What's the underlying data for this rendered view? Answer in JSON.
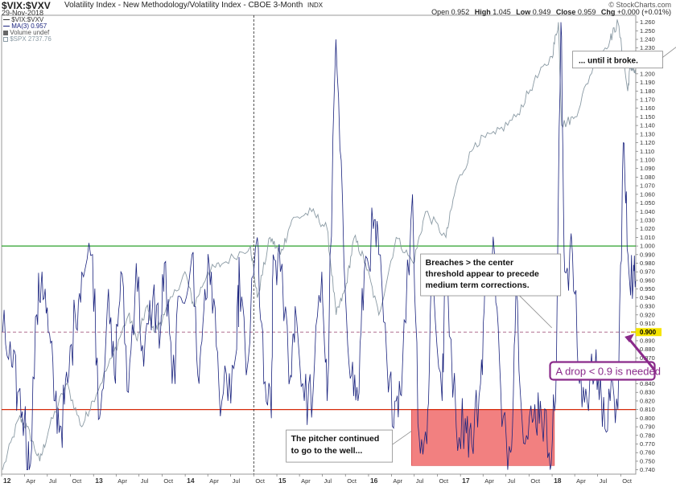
{
  "header": {
    "ticker": "$VIX:$VXV",
    "subtitle": "Volatility Index - New Methodology/Volatility Index - CBOE 3-Month",
    "exchange": "INDX",
    "date": "29-Nov-2018",
    "credit": "© StockCharts.com",
    "ohlc": {
      "open_label": "Open",
      "open": "0.952",
      "high_label": "High",
      "high": "1.045",
      "low_label": "Low",
      "low": "0.949",
      "close_label": "Close",
      "close": "0.959",
      "chg_label": "Chg",
      "chg": "+0.000 (+0.01%)"
    }
  },
  "legend": {
    "items": [
      "$VIX:$VXV",
      "MA(3) 0.957",
      "Volume undef",
      "$SPX 2737.76"
    ],
    "colors": [
      "#333333",
      "#1a237e",
      "#666666",
      "#8a9aa4"
    ]
  },
  "chart_data": {
    "type": "line",
    "y_axis": {
      "position": "right",
      "ylim": [
        0.735,
        1.268
      ],
      "ticks": [
        0.74,
        0.75,
        0.76,
        0.77,
        0.78,
        0.79,
        0.8,
        0.81,
        0.82,
        0.83,
        0.84,
        0.85,
        0.86,
        0.87,
        0.88,
        0.89,
        0.9,
        0.91,
        0.92,
        0.93,
        0.94,
        0.95,
        0.96,
        0.97,
        0.98,
        0.99,
        1.0,
        1.01,
        1.02,
        1.03,
        1.04,
        1.05,
        1.06,
        1.07,
        1.08,
        1.09,
        1.1,
        1.11,
        1.12,
        1.13,
        1.14,
        1.15,
        1.16,
        1.17,
        1.18,
        1.19,
        1.2,
        1.21,
        1.22,
        1.23,
        1.24,
        1.25,
        1.26
      ],
      "labels": [
        "0.740",
        "0.750",
        "0.760",
        "0.770",
        "0.780",
        "0.790",
        "0.800",
        "0.810",
        "0.820",
        "0.830",
        "0.840",
        "0.850",
        "0.860",
        "0.870",
        "0.880",
        "0.890",
        "0.900",
        "0.910",
        "0.920",
        "0.930",
        "0.940",
        "0.950",
        "0.960",
        "0.970",
        "0.980",
        "0.990",
        "1.000",
        "1.010",
        "1.020",
        "1.030",
        "1.040",
        "1.050",
        "1.060",
        "1.070",
        "1.080",
        "1.090",
        "1.100",
        "1.110",
        "1.120",
        "1.130",
        "1.140",
        "1.150",
        "1.160",
        "1.170",
        "1.180",
        "1.190",
        "1.200",
        "1.210",
        "1.220",
        "1.230",
        "1.240",
        "1.250",
        "1.260"
      ]
    },
    "x_axis": {
      "xlim": [
        "2012-01-01",
        "2018-11-30"
      ],
      "ticks": [
        {
          "date": "2012-01-01",
          "label": "12"
        },
        {
          "date": "2012-04-01",
          "label": "Apr"
        },
        {
          "date": "2012-07-01",
          "label": "Jul"
        },
        {
          "date": "2012-10-01",
          "label": "Oct"
        },
        {
          "date": "2013-01-01",
          "label": "13"
        },
        {
          "date": "2013-04-01",
          "label": "Apr"
        },
        {
          "date": "2013-07-01",
          "label": "Jul"
        },
        {
          "date": "2013-10-01",
          "label": "Oct"
        },
        {
          "date": "2014-01-01",
          "label": "14"
        },
        {
          "date": "2014-04-01",
          "label": "Apr"
        },
        {
          "date": "2014-07-01",
          "label": "Jul"
        },
        {
          "date": "2014-10-01",
          "label": "Oct"
        },
        {
          "date": "2015-01-01",
          "label": "15"
        },
        {
          "date": "2015-04-01",
          "label": "Apr"
        },
        {
          "date": "2015-07-01",
          "label": "Jul"
        },
        {
          "date": "2015-10-01",
          "label": "Oct"
        },
        {
          "date": "2016-01-01",
          "label": "16"
        },
        {
          "date": "2016-04-01",
          "label": "Apr"
        },
        {
          "date": "2016-07-01",
          "label": "Jul"
        },
        {
          "date": "2016-10-01",
          "label": "Oct"
        },
        {
          "date": "2017-01-01",
          "label": "17"
        },
        {
          "date": "2017-04-01",
          "label": "Apr"
        },
        {
          "date": "2017-07-01",
          "label": "Jul"
        },
        {
          "date": "2017-10-01",
          "label": "Oct"
        },
        {
          "date": "2018-01-01",
          "label": "18"
        },
        {
          "date": "2018-04-01",
          "label": "Apr"
        },
        {
          "date": "2018-07-01",
          "label": "Jul"
        },
        {
          "date": "2018-10-01",
          "label": "Oct"
        }
      ]
    },
    "vline_date": "2014-10-01",
    "hlines": [
      {
        "value": 1.0,
        "color": "#2ca02c",
        "style": "solid"
      },
      {
        "value": 0.9,
        "color": "#b07090",
        "style": "dashed"
      },
      {
        "value": 0.81,
        "color": "#d62a0a",
        "style": "solid"
      }
    ],
    "last_value_marker": {
      "value": 0.9,
      "label": "0.900",
      "color": "#f5e400"
    },
    "series": [
      {
        "color": "#1a237e",
        "points": [
          [
            "2012-01-05",
            0.9
          ],
          [
            "2012-02-10",
            0.86
          ],
          [
            "2012-03-05",
            0.83
          ],
          [
            "2012-04-01",
            0.8
          ],
          [
            "2012-04-20",
            0.74
          ],
          [
            "2012-05-20",
            0.92
          ],
          [
            "2012-06-10",
            0.97
          ],
          [
            "2012-07-05",
            0.9
          ],
          [
            "2012-08-01",
            0.82
          ],
          [
            "2012-08-25",
            0.79
          ],
          [
            "2012-09-20",
            0.84
          ],
          [
            "2012-10-20",
            0.92
          ],
          [
            "2012-11-15",
            0.97
          ],
          [
            "2012-12-28",
            0.99
          ],
          [
            "2013-01-25",
            0.8
          ],
          [
            "2013-02-25",
            0.93
          ],
          [
            "2013-03-25",
            0.85
          ],
          [
            "2013-04-20",
            0.97
          ],
          [
            "2013-05-20",
            0.83
          ],
          [
            "2013-06-20",
            0.98
          ],
          [
            "2013-07-20",
            0.86
          ],
          [
            "2013-08-25",
            0.94
          ],
          [
            "2013-09-25",
            0.9
          ],
          [
            "2013-10-10",
            0.98
          ],
          [
            "2013-11-10",
            0.84
          ],
          [
            "2013-12-15",
            0.94
          ],
          [
            "2014-01-28",
            0.99
          ],
          [
            "2014-02-25",
            0.84
          ],
          [
            "2014-03-20",
            0.95
          ],
          [
            "2014-04-15",
            0.97
          ],
          [
            "2014-05-15",
            0.84
          ],
          [
            "2014-06-20",
            0.82
          ],
          [
            "2014-07-25",
            0.88
          ],
          [
            "2014-08-05",
            0.97
          ],
          [
            "2014-09-01",
            0.85
          ],
          [
            "2014-10-15",
            1.01
          ],
          [
            "2014-11-10",
            0.84
          ],
          [
            "2014-12-10",
            0.8
          ],
          [
            "2014-12-17",
            0.99
          ],
          [
            "2015-01-15",
            0.97
          ],
          [
            "2015-02-25",
            0.85
          ],
          [
            "2015-03-15",
            0.93
          ],
          [
            "2015-04-20",
            0.82
          ],
          [
            "2015-05-25",
            0.83
          ],
          [
            "2015-06-29",
            0.97
          ],
          [
            "2015-07-20",
            0.82
          ],
          [
            "2015-08-24",
            1.24
          ],
          [
            "2015-09-25",
            0.98
          ],
          [
            "2015-10-25",
            0.85
          ],
          [
            "2015-11-20",
            0.82
          ],
          [
            "2015-12-15",
            0.97
          ],
          [
            "2016-01-20",
            1.02
          ],
          [
            "2016-02-11",
            0.99
          ],
          [
            "2016-03-20",
            0.83
          ],
          [
            "2016-04-20",
            0.82
          ],
          [
            "2016-05-15",
            0.86
          ],
          [
            "2016-06-24",
            1.06
          ],
          [
            "2016-07-20",
            0.78
          ],
          [
            "2016-08-20",
            0.77
          ],
          [
            "2016-09-09",
            0.98
          ],
          [
            "2016-10-20",
            0.82
          ],
          [
            "2016-11-04",
            0.99
          ],
          [
            "2016-12-15",
            0.79
          ],
          [
            "2017-01-20",
            0.8
          ],
          [
            "2017-02-15",
            0.77
          ],
          [
            "2017-03-22",
            0.84
          ],
          [
            "2017-04-13",
            0.97
          ],
          [
            "2017-05-17",
            0.99
          ],
          [
            "2017-06-15",
            0.79
          ],
          [
            "2017-07-20",
            0.76
          ],
          [
            "2017-08-10",
            0.95
          ],
          [
            "2017-09-15",
            0.77
          ],
          [
            "2017-10-20",
            0.8
          ],
          [
            "2017-11-15",
            0.82
          ],
          [
            "2017-12-20",
            0.76
          ],
          [
            "2018-01-15",
            0.82
          ],
          [
            "2018-02-05",
            1.26
          ],
          [
            "2018-02-20",
            0.97
          ],
          [
            "2018-03-23",
            0.99
          ],
          [
            "2018-04-20",
            0.84
          ],
          [
            "2018-05-20",
            0.82
          ],
          [
            "2018-06-25",
            0.88
          ],
          [
            "2018-07-20",
            0.79
          ],
          [
            "2018-08-20",
            0.82
          ],
          [
            "2018-09-20",
            0.81
          ],
          [
            "2018-10-11",
            1.12
          ],
          [
            "2018-10-30",
            0.99
          ],
          [
            "2018-11-20",
            0.96
          ],
          [
            "2018-11-29",
            0.959
          ]
        ]
      },
      {
        "color": "#8a9aa4",
        "points": [
          [
            "2012-01-05",
            0.74
          ],
          [
            "2012-03-10",
            0.8
          ],
          [
            "2012-04-10",
            0.79
          ],
          [
            "2012-06-01",
            0.75
          ],
          [
            "2012-07-10",
            0.79
          ],
          [
            "2012-09-15",
            0.84
          ],
          [
            "2012-11-15",
            0.79
          ],
          [
            "2012-12-28",
            0.82
          ],
          [
            "2013-03-15",
            0.87
          ],
          [
            "2013-05-20",
            0.92
          ],
          [
            "2013-06-24",
            0.89
          ],
          [
            "2013-08-01",
            0.93
          ],
          [
            "2013-08-30",
            0.9
          ],
          [
            "2013-10-10",
            0.92
          ],
          [
            "2013-12-31",
            0.97
          ],
          [
            "2014-02-04",
            0.93
          ],
          [
            "2014-04-01",
            0.97
          ],
          [
            "2014-06-01",
            0.98
          ],
          [
            "2014-09-18",
            1.0
          ],
          [
            "2014-10-15",
            0.94
          ],
          [
            "2014-12-05",
            1.01
          ],
          [
            "2015-01-15",
            0.99
          ],
          [
            "2015-03-01",
            1.03
          ],
          [
            "2015-05-20",
            1.04
          ],
          [
            "2015-07-20",
            1.02
          ],
          [
            "2015-08-25",
            0.92
          ],
          [
            "2015-10-01",
            0.95
          ],
          [
            "2015-11-05",
            1.01
          ],
          [
            "2015-12-20",
            0.98
          ],
          [
            "2016-02-11",
            0.92
          ],
          [
            "2016-04-20",
            1.01
          ],
          [
            "2016-06-27",
            0.98
          ],
          [
            "2016-08-15",
            1.04
          ],
          [
            "2016-11-04",
            1.01
          ],
          [
            "2016-12-15",
            1.07
          ],
          [
            "2017-03-01",
            1.12
          ],
          [
            "2017-05-20",
            1.13
          ],
          [
            "2017-08-10",
            1.15
          ],
          [
            "2017-10-20",
            1.19
          ],
          [
            "2017-12-31",
            1.22
          ],
          [
            "2018-01-26",
            1.26
          ],
          [
            "2018-02-08",
            1.14
          ],
          [
            "2018-04-02",
            1.15
          ],
          [
            "2018-06-15",
            1.21
          ],
          [
            "2018-08-20",
            1.24
          ],
          [
            "2018-09-20",
            1.26
          ],
          [
            "2018-10-29",
            1.18
          ],
          [
            "2018-11-08",
            1.21
          ],
          [
            "2018-11-29",
            1.2
          ]
        ]
      }
    ],
    "shaded_region": {
      "x": [
        "2016-06-20",
        "2018-01-10"
      ],
      "y": [
        0.745,
        0.81
      ],
      "color": "#f28080"
    },
    "annotations": [
      {
        "text": "... until it broke.",
        "date": "2017-07-25",
        "value": 1.216
      },
      {
        "text": "Breaches > the center threshold appear to precede medium term corrections.",
        "date": "2016-08-05",
        "value": 0.959
      },
      {
        "text": "The pitcher continued to go to the well...",
        "date": "2015-02-20",
        "value": 0.762
      },
      {
        "text": "A drop < 0.9 is needed",
        "date": "2018-01-12",
        "value": 0.854
      }
    ]
  },
  "annotations": {
    "broke": [
      "... until it broke."
    ],
    "breaches": [
      "Breaches > the center",
      "threshold appear to precede",
      "medium term corrections."
    ],
    "pitcher": [
      "The pitcher continued",
      "to go to the well..."
    ],
    "drop": "A drop < 0.9 is needed"
  }
}
